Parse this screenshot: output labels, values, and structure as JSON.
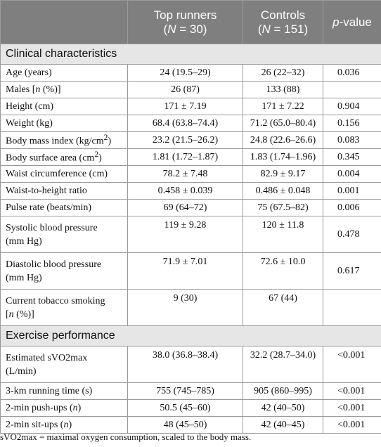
{
  "header": {
    "col2_line1": "Top runners",
    "col2_line2_pre": "(",
    "col2_line2_italic": "N",
    "col2_line2_post": " = 30)",
    "col3_line1": "Controls",
    "col3_line2_pre": "(",
    "col3_line2_italic": "N",
    "col3_line2_post": " = 151)",
    "col4_pre": "",
    "col4_italic": "p",
    "col4_post": "-value"
  },
  "sections": {
    "clinical": "Clinical characteristics",
    "exercise": "Exercise performance"
  },
  "rows": {
    "age": {
      "label": "Age (years)",
      "top": "24 (19.5–29)",
      "ctrl": "26 (22–32)",
      "p": "0.036"
    },
    "males": {
      "label_pre": "Males [",
      "label_italic": "n",
      "label_post": " (%)]",
      "top": "26 (87)",
      "ctrl": "133 (88)",
      "p": ""
    },
    "height": {
      "label": "Height (cm)",
      "top": "171 ± 7.19",
      "ctrl": "171 ± 7.22",
      "p": "0.904"
    },
    "weight": {
      "label": "Weight (kg)",
      "top": "68.4 (63.8–74.4)",
      "ctrl": "71.2 (65.0–80.4)",
      "p": "0.156"
    },
    "bmi": {
      "label_pre": "Body mass index (kg/cm",
      "label_sup": "2",
      "label_post": ")",
      "top": "23.2 (21.5–26.2)",
      "ctrl": "24.8 (22.6–26.6)",
      "p": "0.083"
    },
    "bsa": {
      "label_pre": "Body surface area (cm",
      "label_sup": "2",
      "label_post": ")",
      "top": "1.81 (1.72–1.87)",
      "ctrl": "1.83 (1.74–1.96)",
      "p": "0.345"
    },
    "waist": {
      "label": "Waist circumference (cm)",
      "top": "78.2 ± 7.48",
      "ctrl": "82.9 ± 9.17",
      "p": "0.004"
    },
    "whr": {
      "label": "Waist-to-height ratio",
      "top": "0.458 ± 0.039",
      "ctrl": "0.486 ± 0.048",
      "p": "0.001"
    },
    "pulse": {
      "label": "Pulse rate (beats/min)",
      "top": "69 (64–72)",
      "ctrl": "75 (67.5–82)",
      "p": "0.006"
    },
    "sbp": {
      "label_line1": "Systolic blood pressure",
      "label_line2": "(mm Hg)",
      "top": "119 ± 9.28",
      "ctrl": "120 ± 11.8",
      "p": "0.478"
    },
    "dbp": {
      "label_line1": "Diastolic blood pressure",
      "label_line2": "(mm Hg)",
      "top": "71.9 ± 7.01",
      "ctrl": "72.6 ± 10.0",
      "p": "0.617"
    },
    "smoking": {
      "label_line1": "Current tobacco smoking",
      "label_line2_pre": "[",
      "label_line2_italic": "n",
      "label_line2_post": " (%)]",
      "top": "9 (30)",
      "ctrl": "67 (44)",
      "p": ""
    },
    "vo2": {
      "label_line1": "Estimated sVO2max",
      "label_line2": "(L/min)",
      "top": "38.0 (36.8–38.4)",
      "ctrl": "32.2 (28.7–34.0)",
      "p": "<0.001"
    },
    "run": {
      "label": "3-km running time (s)",
      "top": "755 (745–785)",
      "ctrl": "905 (860–995)",
      "p": "<0.001"
    },
    "pushups": {
      "label_pre": "2-min push-ups (",
      "label_italic": "n",
      "label_post": ")",
      "top": "50.5 (45–60)",
      "ctrl": "42 (40–50)",
      "p": "<0.001"
    },
    "situps": {
      "label_pre": "2-min sit-ups (",
      "label_italic": "n",
      "label_post": ")",
      "top": "48 (45–50)",
      "ctrl": "42 (40–45)",
      "p": "<0.001"
    }
  },
  "footnote": "sVO2max = maximal oxygen consumption, scaled to the body mass."
}
